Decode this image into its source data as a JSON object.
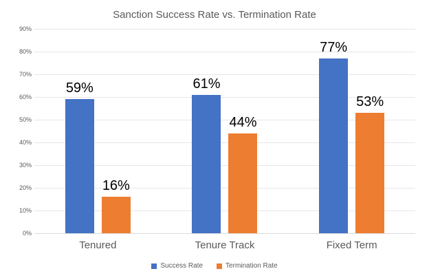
{
  "chart_data": {
    "type": "bar",
    "title": "Sanction Success Rate vs. Termination Rate",
    "categories": [
      "Tenured",
      "Tenure Track",
      "Fixed Term"
    ],
    "series": [
      {
        "name": "Success Rate",
        "color": "#4472C4",
        "values": [
          59,
          61,
          77
        ],
        "labels": [
          "59%",
          "61%",
          "77%"
        ]
      },
      {
        "name": "Termination Rate",
        "color": "#ED7D31",
        "values": [
          16,
          44,
          53
        ],
        "labels": [
          "16%",
          "44%",
          "53%"
        ]
      }
    ],
    "ylabel": "",
    "xlabel": "",
    "ylim": [
      0,
      90
    ],
    "ytick_step": 10,
    "ytick_labels": [
      "0%",
      "10%",
      "20%",
      "30%",
      "40%",
      "50%",
      "60%",
      "70%",
      "80%",
      "90%"
    ],
    "grid": true,
    "legend_position": "bottom",
    "colors": {
      "title_text": "#595959",
      "axis_text": "#595959",
      "data_label_text": "#000000",
      "gridline": "#E6E6E6",
      "axis_line": "#D9D9D9",
      "background": "#FFFFFF"
    }
  }
}
